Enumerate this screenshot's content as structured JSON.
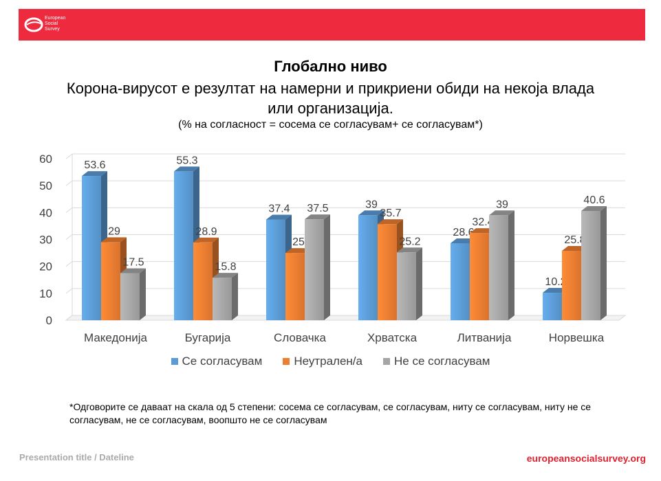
{
  "header": {
    "logo_line1": "European",
    "logo_line2": "Social",
    "logo_line3": "Survey"
  },
  "title": "Глобално ниво",
  "subtitle_line1": "Корона-вирусот е резултат на намерни и прикриени обиди на некоја влада",
  "subtitle_line2": "или организација.",
  "note": "(% на согласност = сосема се согласувам+ се согласувам*)",
  "footnote": "*Одговорите се даваат на скала од 5 степени: сосема се согласувам, се согласувам, ниту се согласувам, ниту не се согласувам, не се согласувам, воопшто не се согласувам",
  "footer": {
    "left": "Presentation title / Dateline",
    "right": "europeansocialsurvey.org"
  },
  "chart_data": {
    "type": "bar",
    "categories": [
      "Македонија",
      "Бугарија",
      "Словачка",
      "Хрватска",
      "Литванија",
      "Норвешка"
    ],
    "series": [
      {
        "name": "Се согласувам",
        "values": [
          53.6,
          55.3,
          37.4,
          39,
          28.6,
          10.2
        ],
        "color": "#5b9bd5"
      },
      {
        "name": "Неутрален/а",
        "values": [
          29,
          28.9,
          25,
          35.7,
          32.4,
          25.8
        ],
        "color": "#ed7d31"
      },
      {
        "name": "Не се согласувам",
        "values": [
          17.5,
          15.8,
          37.5,
          25.2,
          39,
          40.6
        ],
        "color": "#a5a5a5"
      }
    ],
    "yticks": [
      0,
      10,
      20,
      30,
      40,
      50,
      60
    ],
    "ylim": [
      0,
      60
    ],
    "grid": true,
    "legend_position": "bottom"
  }
}
